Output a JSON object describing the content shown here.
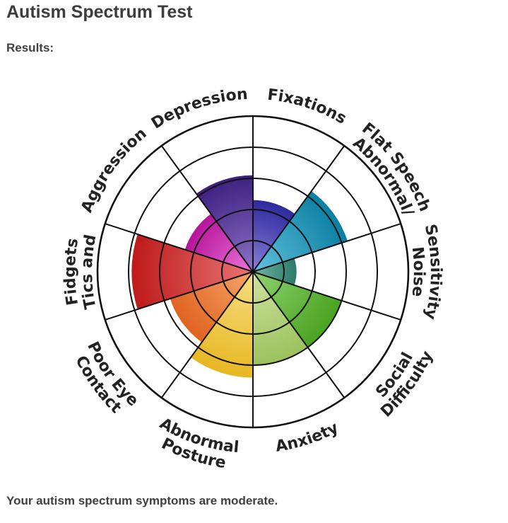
{
  "page": {
    "title": "Autism Spectrum Test",
    "results_label": "Results:",
    "summary": "Your autism spectrum symptoms are moderate."
  },
  "chart_data": {
    "type": "radial-bar",
    "max_level": 5,
    "ring_levels": [
      1,
      2,
      3,
      4,
      5
    ],
    "segments": [
      {
        "label": [
          "Fixations"
        ],
        "value": 2.3,
        "color_light": "#8a80d8",
        "color_dark": "#2e2a9e"
      },
      {
        "label": [
          "Abnormal/",
          "Flat Speech"
        ],
        "value": 3.2,
        "color_light": "#62c2de",
        "color_dark": "#0b7fa2"
      },
      {
        "label": [
          "Noise",
          "Sensitivity"
        ],
        "value": 1.4,
        "color_light": "#6fb5a0",
        "color_dark": "#2f7b6a"
      },
      {
        "label": [
          "Social",
          "Difficulty"
        ],
        "value": 3.0,
        "color_light": "#8fd36f",
        "color_dark": "#4aa321"
      },
      {
        "label": [
          "Anxiety"
        ],
        "value": 3.0,
        "color_light": "#cfe2a1",
        "color_dark": "#9cc25e"
      },
      {
        "label": [
          "Abnormal",
          "Posture"
        ],
        "value": 3.4,
        "color_light": "#f7de84",
        "color_dark": "#e8b823"
      },
      {
        "label": [
          "Poor Eye",
          "Contact"
        ],
        "value": 2.8,
        "color_light": "#f6a46a",
        "color_dark": "#e06420"
      },
      {
        "label": [
          "Tics and",
          "Fidgets"
        ],
        "value": 3.9,
        "color_light": "#e87575",
        "color_dark": "#bf1a1a"
      },
      {
        "label": [
          "Aggression"
        ],
        "value": 2.3,
        "color_light": "#ec76d8",
        "color_dark": "#b6149a"
      },
      {
        "label": [
          "Depression"
        ],
        "value": 3.1,
        "color_light": "#8e73c8",
        "color_dark": "#3e2080"
      }
    ]
  }
}
